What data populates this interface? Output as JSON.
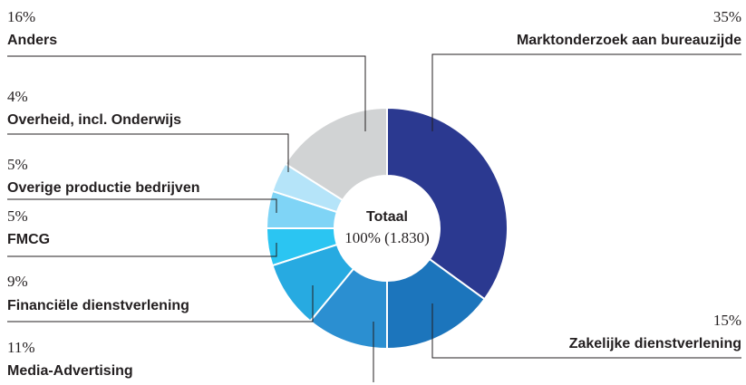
{
  "chart_data": {
    "type": "donut",
    "categories": [
      "Marktonderzoek aan bureauzijde",
      "Zakelijke dienstverlening",
      "Media-Advertising",
      "Financiële dienstverlening",
      "FMCG",
      "Overige productie bedrijven",
      "Overheid, incl. Onderwijs",
      "Anders"
    ],
    "values": [
      35,
      15,
      11,
      9,
      5,
      5,
      4,
      16
    ],
    "value_labels": [
      "35%",
      "15%",
      "11%",
      "9%",
      "5%",
      "5%",
      "4%",
      "16%"
    ],
    "colors": [
      "#2b3990",
      "#1c75bc",
      "#2b8fd1",
      "#27aae1",
      "#2bc5f2",
      "#7fd4f6",
      "#b5e4f9",
      "#d1d3d4"
    ],
    "center_title": "Totaal",
    "center_label": "100% (1.830)"
  }
}
